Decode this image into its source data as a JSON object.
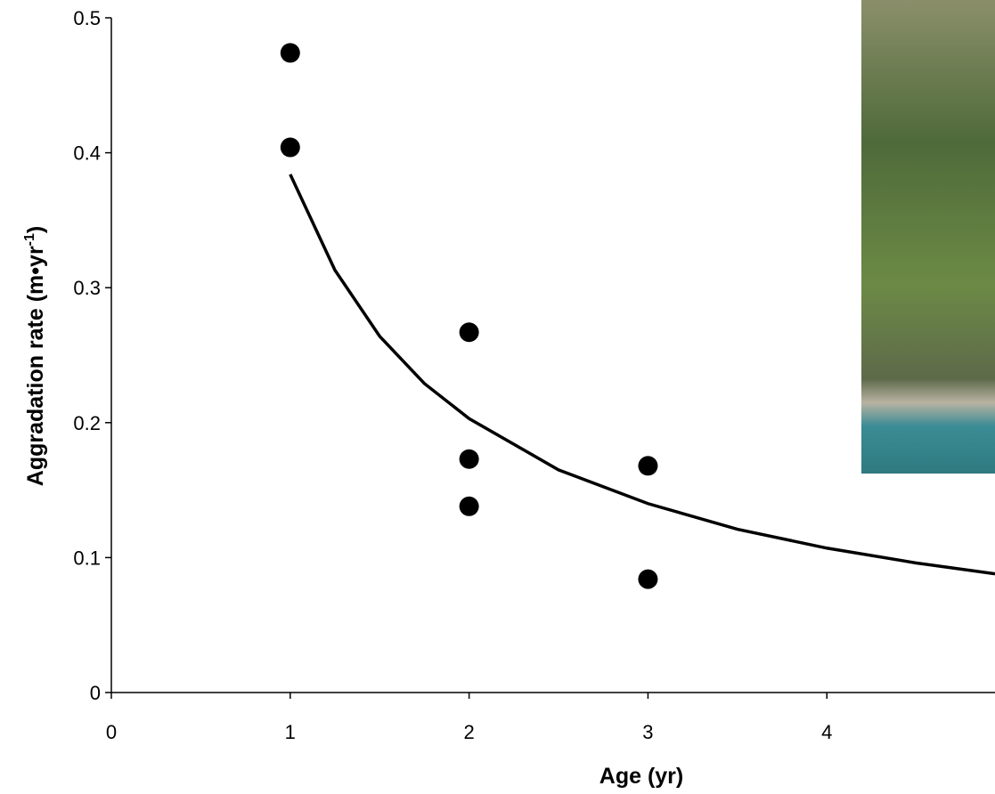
{
  "chart_data": {
    "type": "scatter",
    "x_label": "Age (yr)",
    "y_label": {
      "text": "Aggradation rate (m•yr",
      "superscript": "-1",
      "suffix": ")"
    },
    "xlim": [
      0,
      4.94
    ],
    "xticks": [
      0,
      1,
      2,
      3,
      4
    ],
    "ylim": [
      0,
      0.5
    ],
    "yticks": [
      0,
      0.1,
      0.2,
      0.3,
      0.4,
      0.5
    ],
    "points": {
      "color": "#000000",
      "x": [
        1,
        1,
        2,
        2,
        2,
        3,
        3
      ],
      "values": [
        0.474,
        0.404,
        0.267,
        0.173,
        0.138,
        0.168,
        0.084
      ]
    },
    "fit": {
      "color": "#000000",
      "x": [
        1,
        1.25,
        1.5,
        1.75,
        2,
        2.5,
        3,
        3.5,
        4,
        4.5,
        4.94
      ],
      "values": [
        0.384,
        0.313,
        0.264,
        0.229,
        0.203,
        0.165,
        0.14,
        0.121,
        0.107,
        0.096,
        0.088
      ]
    }
  }
}
